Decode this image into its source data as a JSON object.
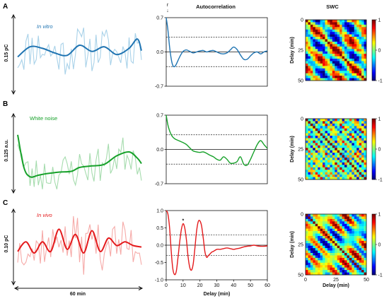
{
  "figure": {
    "column_titles": {
      "autocorrelation": "Autocorrelation",
      "swc": "SWC"
    },
    "r_label": "r",
    "r_arrow": "↓",
    "time_scale_label": "60 min"
  },
  "colors": {
    "red": "#e41a1c",
    "red_light": "#f6aaa8",
    "blue": "#1f74b2",
    "blue_light": "#a9d2e9",
    "green": "#17a12a",
    "green_light": "#a6dcae",
    "threshold": "#222222"
  },
  "chart_data": [
    {
      "type": "line",
      "panel": "A",
      "condition": "In vitro",
      "scale_label": "0.15 pC",
      "color": "#1f74b2",
      "raw_color": "#a9d2e9",
      "italic": true,
      "seed": 11,
      "raw_amp": 0.45,
      "raw_n": 60,
      "x": [
        0,
        6,
        12,
        18,
        24,
        30,
        36,
        42,
        48,
        54,
        58,
        60
      ],
      "values": [
        0.45,
        0.58,
        0.56,
        0.5,
        0.47,
        0.6,
        0.52,
        0.58,
        0.48,
        0.56,
        0.68,
        0.53
      ]
    },
    {
      "type": "line",
      "panel": "A",
      "title": "Autocorrelation",
      "x": [
        0,
        1,
        2,
        3,
        4,
        5,
        6,
        8,
        10,
        12,
        14,
        16,
        18,
        20,
        22,
        24,
        26,
        28,
        30,
        32,
        34,
        36,
        38,
        40,
        42,
        44,
        46,
        48,
        50,
        52,
        54,
        56,
        58,
        60
      ],
      "values": [
        0.7,
        0.45,
        0.1,
        -0.15,
        -0.28,
        -0.3,
        -0.25,
        -0.1,
        0.01,
        0.04,
        0.01,
        -0.02,
        0.0,
        0.02,
        0.03,
        0.0,
        0.02,
        0.03,
        0.0,
        -0.03,
        -0.04,
        -0.02,
        0.04,
        0.1,
        0.05,
        -0.06,
        -0.15,
        -0.15,
        -0.08,
        -0.02,
        0.0,
        -0.04,
        0.0,
        0.02
      ],
      "thresholds": [
        0.3,
        -0.3
      ],
      "ylim": [
        -0.7,
        0.7
      ],
      "yticks": [
        0.7,
        0.0,
        -0.7
      ],
      "xlim": [
        0,
        60
      ],
      "color": "#1f74b2"
    },
    {
      "type": "heatmap",
      "panel": "A",
      "title": "SWC",
      "ylabel": "Delay (min)",
      "xlim": [
        0,
        50
      ],
      "ylim": [
        0,
        50
      ],
      "yticks": [
        0,
        25,
        50
      ],
      "colorbar_ticks": [
        1,
        0,
        -1
      ],
      "pattern": "vitro",
      "seed": 5
    },
    {
      "type": "line",
      "panel": "B",
      "condition": "White noise",
      "scale_label": "0.125 a.u.",
      "color": "#17a12a",
      "raw_color": "#a6dcae",
      "italic": false,
      "seed": 23,
      "raw_amp": 0.4,
      "raw_n": 60,
      "x": [
        0,
        3,
        6,
        10,
        14,
        20,
        26,
        30,
        36,
        42,
        48,
        54,
        58,
        60
      ],
      "values": [
        0.72,
        0.3,
        0.18,
        0.2,
        0.22,
        0.24,
        0.25,
        0.3,
        0.32,
        0.34,
        0.45,
        0.5,
        0.42,
        0.35
      ]
    },
    {
      "type": "line",
      "panel": "B",
      "title": "Autocorrelation",
      "x": [
        0,
        1,
        2,
        3,
        4,
        5,
        6,
        8,
        10,
        12,
        14,
        16,
        18,
        20,
        22,
        24,
        26,
        28,
        30,
        32,
        34,
        36,
        38,
        40,
        42,
        44,
        46,
        48,
        50,
        52,
        54,
        56,
        58,
        60
      ],
      "values": [
        0.7,
        0.5,
        0.38,
        0.3,
        0.25,
        0.22,
        0.2,
        0.17,
        0.14,
        0.1,
        0.03,
        -0.03,
        -0.05,
        -0.06,
        -0.05,
        -0.08,
        -0.12,
        -0.15,
        -0.2,
        -0.22,
        -0.15,
        -0.2,
        -0.28,
        -0.28,
        -0.25,
        -0.15,
        -0.3,
        -0.32,
        -0.2,
        -0.05,
        0.1,
        0.18,
        0.1,
        0.02
      ],
      "thresholds": [
        0.3,
        -0.3
      ],
      "ylim": [
        -0.7,
        0.7
      ],
      "yticks": [
        0.7,
        0.0,
        -0.7
      ],
      "xlim": [
        0,
        60
      ],
      "color": "#17a12a"
    },
    {
      "type": "heatmap",
      "panel": "B",
      "title": "SWC",
      "ylabel": "Delay (min)",
      "xlim": [
        0,
        50
      ],
      "ylim": [
        0,
        50
      ],
      "yticks": [
        0,
        25,
        50
      ],
      "colorbar_ticks": [
        1,
        0,
        -1
      ],
      "pattern": "noise",
      "seed": 9
    },
    {
      "type": "line",
      "panel": "C",
      "condition": "In vivo",
      "scale_label": "0.10 pC",
      "color": "#e41a1c",
      "raw_color": "#f6aaa8",
      "italic": true,
      "seed": 37,
      "raw_amp": 0.5,
      "raw_n": 60,
      "x": [
        0,
        4,
        8,
        12,
        16,
        20,
        24,
        28,
        32,
        36,
        40,
        44,
        48,
        52,
        56,
        60
      ],
      "values": [
        0.42,
        0.55,
        0.4,
        0.55,
        0.42,
        0.72,
        0.45,
        0.65,
        0.4,
        0.7,
        0.42,
        0.6,
        0.5,
        0.55,
        0.5,
        0.48
      ]
    },
    {
      "type": "line",
      "panel": "C",
      "title": "Autocorrelation",
      "xlabel": "Delay (min)",
      "x": [
        0,
        1,
        2,
        3,
        4,
        5,
        6,
        7,
        8,
        9,
        10,
        11,
        12,
        13,
        14,
        15,
        16,
        17,
        18,
        19,
        20,
        21,
        22,
        23,
        24,
        25,
        26,
        27,
        28,
        30,
        32,
        34,
        36,
        38,
        40,
        42,
        44,
        46,
        48,
        50,
        52,
        54,
        56,
        58,
        60
      ],
      "values": [
        1.0,
        0.9,
        0.5,
        -0.2,
        -0.7,
        -0.85,
        -0.75,
        -0.35,
        0.1,
        0.45,
        0.62,
        0.5,
        0.15,
        -0.35,
        -0.65,
        -0.72,
        -0.55,
        -0.1,
        0.4,
        0.68,
        0.7,
        0.55,
        0.2,
        -0.2,
        -0.35,
        -0.3,
        -0.25,
        -0.2,
        -0.18,
        -0.12,
        -0.12,
        -0.1,
        -0.08,
        -0.1,
        -0.12,
        -0.1,
        -0.08,
        -0.05,
        -0.03,
        -0.02,
        0.0,
        -0.02,
        -0.03,
        -0.03,
        -0.02
      ],
      "thresholds": [
        0.3,
        -0.3
      ],
      "ylim": [
        -1.0,
        1.0
      ],
      "yticks": [
        1.0,
        0.5,
        0.0,
        -0.5,
        -1.0
      ],
      "xlim": [
        0,
        60
      ],
      "xticks": [
        0,
        10,
        20,
        30,
        40,
        50,
        60
      ],
      "color": "#e41a1c",
      "annotations": [
        {
          "x": 10,
          "y": 0.66,
          "text": "*"
        }
      ]
    },
    {
      "type": "heatmap",
      "panel": "C",
      "title": "SWC",
      "ylabel": "Delay (min)",
      "xlabel": "Delay (min)",
      "xlim": [
        0,
        50
      ],
      "ylim": [
        0,
        50
      ],
      "xticks": [
        0,
        25,
        50
      ],
      "yticks": [
        0,
        25,
        50
      ],
      "colorbar_ticks": [
        1,
        0,
        -1
      ],
      "pattern": "vivo",
      "seed": 3
    }
  ]
}
